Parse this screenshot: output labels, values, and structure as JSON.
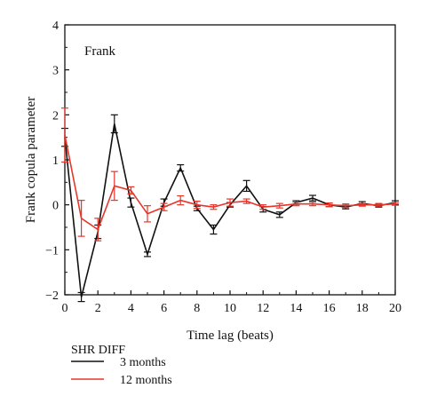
{
  "chart_data": {
    "type": "line",
    "panel_label": "Frank",
    "xlabel": "Time lag (beats)",
    "ylabel": "Frank copula parameter",
    "xlim": [
      0,
      20
    ],
    "ylim": [
      -2,
      4
    ],
    "xticks": [
      0,
      2,
      4,
      6,
      8,
      10,
      12,
      14,
      16,
      18,
      20
    ],
    "yticks": [
      -2,
      -1,
      0,
      1,
      2,
      3,
      4
    ],
    "grid": false,
    "legend_title": "SHR DIFF",
    "legend_position": "bottom",
    "series": [
      {
        "name": "3 months",
        "color": "#111111",
        "x": [
          0,
          1,
          2,
          3,
          4,
          5,
          6,
          7,
          8,
          9,
          10,
          11,
          12,
          13,
          14,
          15,
          16,
          17,
          18,
          19,
          20
        ],
        "y": [
          1.5,
          -2.05,
          -0.6,
          1.8,
          0.05,
          -1.1,
          0.05,
          0.82,
          -0.08,
          -0.55,
          0.0,
          0.42,
          -0.1,
          -0.22,
          0.05,
          0.15,
          0.0,
          -0.05,
          0.03,
          -0.02,
          0.05
        ],
        "err": [
          0.2,
          0.1,
          0.15,
          0.2,
          0.1,
          0.05,
          0.08,
          0.07,
          0.05,
          0.1,
          0.05,
          0.12,
          0.06,
          0.06,
          0.04,
          0.06,
          0.04,
          0.04,
          0.04,
          0.03,
          0.04
        ]
      },
      {
        "name": "12 months",
        "color": "#e8352a",
        "x": [
          0,
          1,
          2,
          3,
          4,
          5,
          6,
          7,
          8,
          9,
          10,
          11,
          12,
          13,
          14,
          15,
          16,
          17,
          18,
          19,
          20
        ],
        "y": [
          1.55,
          -0.3,
          -0.55,
          0.42,
          0.32,
          -0.2,
          -0.05,
          0.1,
          0.0,
          -0.05,
          0.05,
          0.08,
          -0.05,
          -0.02,
          0.02,
          0.02,
          0.0,
          -0.02,
          0.0,
          0.0,
          0.02
        ],
        "err": [
          0.6,
          0.4,
          0.25,
          0.32,
          0.08,
          0.18,
          0.08,
          0.1,
          0.08,
          0.05,
          0.08,
          0.05,
          0.05,
          0.05,
          0.04,
          0.04,
          0.04,
          0.04,
          0.03,
          0.03,
          0.03
        ]
      }
    ]
  }
}
